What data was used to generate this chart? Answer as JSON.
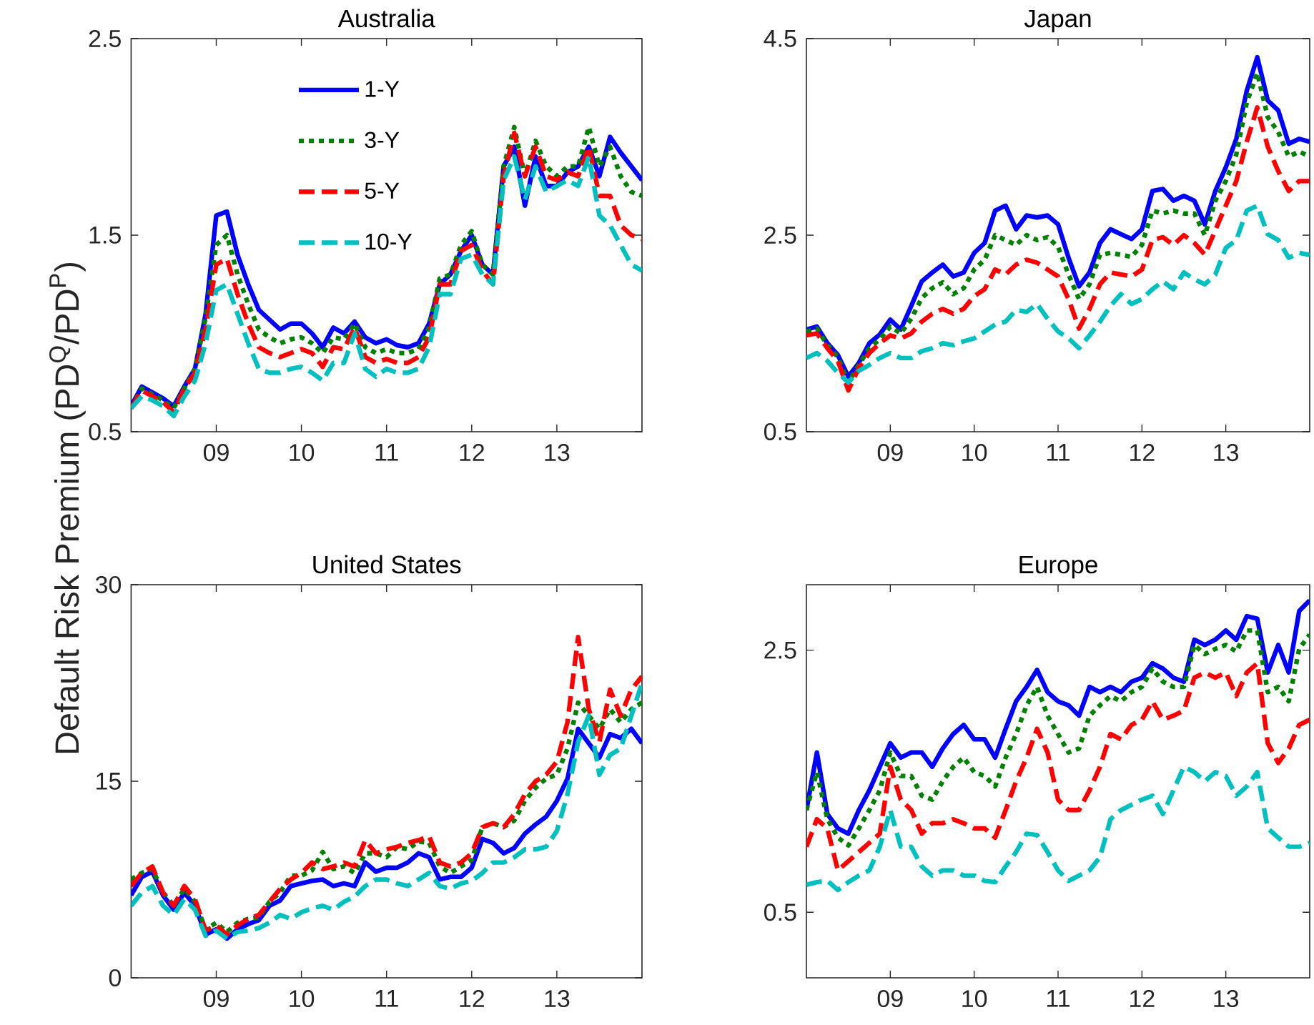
{
  "chart_data": [
    {
      "type": "line",
      "title": "Australia",
      "ylabel": "Default Risk Premium (PD$^{Q}$/PD$^{P}$)",
      "legend": "top",
      "x": [
        2008,
        2008.125,
        2008.25,
        2008.375,
        2008.5,
        2008.625,
        2008.75,
        2008.875,
        2009,
        2009.125,
        2009.25,
        2009.375,
        2009.5,
        2009.625,
        2009.75,
        2009.875,
        2010,
        2010.125,
        2010.25,
        2010.375,
        2010.5,
        2010.625,
        2010.75,
        2010.875,
        2011,
        2011.125,
        2011.25,
        2011.375,
        2011.5,
        2011.625,
        2011.75,
        2011.875,
        2012,
        2012.125,
        2012.25,
        2012.375,
        2012.5,
        2012.625,
        2012.75,
        2012.875,
        2013,
        2013.125,
        2013.25,
        2013.375,
        2013.5,
        2013.625,
        2013.75,
        2013.875,
        2014
      ],
      "xlim": [
        2008,
        2014
      ],
      "xticks": [
        {
          "value": 2009,
          "label": "09"
        },
        {
          "value": 2010,
          "label": "10"
        },
        {
          "value": 2011,
          "label": "11"
        },
        {
          "value": 2012,
          "label": "12"
        },
        {
          "value": 2013,
          "label": "13"
        }
      ],
      "ylim": [
        0.5,
        2.5
      ],
      "yticks": [
        0.5,
        1.5,
        2.5
      ],
      "series": [
        {
          "name": "1-Y",
          "color": "#0000ff",
          "line_style": "solid",
          "values": [
            0.63,
            0.73,
            0.7,
            0.67,
            0.63,
            0.73,
            0.82,
            1.1,
            1.6,
            1.62,
            1.4,
            1.25,
            1.12,
            1.07,
            1.02,
            1.05,
            1.05,
            1.0,
            0.93,
            1.03,
            1.0,
            1.06,
            0.98,
            0.95,
            0.97,
            0.94,
            0.93,
            0.95,
            1.05,
            1.25,
            1.3,
            1.42,
            1.5,
            1.35,
            1.3,
            1.85,
            1.95,
            1.65,
            1.9,
            1.75,
            1.75,
            1.82,
            1.85,
            1.95,
            1.8,
            2.0,
            1.92,
            1.85,
            1.78
          ]
        },
        {
          "name": "3-Y",
          "color": "#008000",
          "line_style": "dotted",
          "values": [
            0.62,
            0.72,
            0.69,
            0.66,
            0.62,
            0.72,
            0.82,
            1.08,
            1.45,
            1.5,
            1.3,
            1.15,
            1.02,
            0.98,
            0.95,
            0.97,
            0.98,
            0.95,
            0.9,
            0.98,
            0.97,
            1.05,
            0.93,
            0.9,
            0.92,
            0.9,
            0.9,
            0.92,
            1.03,
            1.28,
            1.3,
            1.45,
            1.52,
            1.35,
            1.3,
            1.85,
            2.05,
            1.8,
            1.98,
            1.85,
            1.8,
            1.85,
            1.85,
            2.05,
            1.85,
            1.95,
            1.8,
            1.72,
            1.7
          ]
        },
        {
          "name": "5-Y",
          "color": "#ff0000",
          "line_style": "dashed",
          "values": [
            0.62,
            0.71,
            0.68,
            0.65,
            0.6,
            0.72,
            0.8,
            1.02,
            1.35,
            1.38,
            1.2,
            1.05,
            0.93,
            0.9,
            0.88,
            0.9,
            0.92,
            0.9,
            0.83,
            0.93,
            0.92,
            1.03,
            0.88,
            0.85,
            0.87,
            0.85,
            0.85,
            0.88,
            0.98,
            1.25,
            1.25,
            1.42,
            1.45,
            1.32,
            1.25,
            1.8,
            2.02,
            1.8,
            1.95,
            1.8,
            1.78,
            1.82,
            1.8,
            1.95,
            1.7,
            1.7,
            1.55,
            1.5,
            1.48
          ]
        },
        {
          "name": "10-Y",
          "color": "#00bfbf",
          "line_style": "dashed",
          "values": [
            0.62,
            0.68,
            0.66,
            0.63,
            0.58,
            0.68,
            0.76,
            0.95,
            1.22,
            1.25,
            1.1,
            0.95,
            0.82,
            0.8,
            0.8,
            0.82,
            0.83,
            0.8,
            0.76,
            0.85,
            0.85,
            1.0,
            0.82,
            0.78,
            0.82,
            0.8,
            0.8,
            0.82,
            0.93,
            1.2,
            1.2,
            1.38,
            1.4,
            1.3,
            1.25,
            1.78,
            1.9,
            1.68,
            1.85,
            1.72,
            1.75,
            1.78,
            1.75,
            1.9,
            1.6,
            1.55,
            1.45,
            1.35,
            1.32
          ]
        }
      ]
    },
    {
      "type": "line",
      "title": "Japan",
      "x": [
        2008,
        2008.125,
        2008.25,
        2008.375,
        2008.5,
        2008.625,
        2008.75,
        2008.875,
        2009,
        2009.125,
        2009.25,
        2009.375,
        2009.5,
        2009.625,
        2009.75,
        2009.875,
        2010,
        2010.125,
        2010.25,
        2010.375,
        2010.5,
        2010.625,
        2010.75,
        2010.875,
        2011,
        2011.125,
        2011.25,
        2011.375,
        2011.5,
        2011.625,
        2011.75,
        2011.875,
        2012,
        2012.125,
        2012.25,
        2012.375,
        2012.5,
        2012.625,
        2012.75,
        2012.875,
        2013,
        2013.125,
        2013.25,
        2013.375,
        2013.5,
        2013.625,
        2013.75,
        2013.875,
        2014
      ],
      "xlim": [
        2008,
        2014
      ],
      "xticks": [
        {
          "value": 2009,
          "label": "09"
        },
        {
          "value": 2010,
          "label": "10"
        },
        {
          "value": 2011,
          "label": "11"
        },
        {
          "value": 2012,
          "label": "12"
        },
        {
          "value": 2013,
          "label": "13"
        }
      ],
      "ylim": [
        0.5,
        4.5
      ],
      "yticks": [
        0.5,
        2.5,
        4.5
      ],
      "series": [
        {
          "color": "#0000ff",
          "line_style": "solid",
          "values": [
            1.54,
            1.57,
            1.4,
            1.28,
            1.06,
            1.2,
            1.4,
            1.49,
            1.64,
            1.54,
            1.78,
            2.03,
            2.12,
            2.2,
            2.08,
            2.12,
            2.32,
            2.42,
            2.75,
            2.8,
            2.56,
            2.7,
            2.68,
            2.7,
            2.61,
            2.27,
            1.98,
            2.12,
            2.42,
            2.56,
            2.51,
            2.46,
            2.56,
            2.95,
            2.97,
            2.85,
            2.9,
            2.85,
            2.61,
            2.95,
            3.19,
            3.48,
            3.97,
            4.31,
            3.87,
            3.77,
            3.43,
            3.48,
            3.45
          ]
        },
        {
          "color": "#008000",
          "line_style": "dotted",
          "values": [
            1.52,
            1.55,
            1.38,
            1.26,
            1.0,
            1.18,
            1.35,
            1.44,
            1.57,
            1.5,
            1.65,
            1.86,
            1.96,
            2.02,
            1.9,
            1.96,
            2.15,
            2.25,
            2.5,
            2.45,
            2.4,
            2.5,
            2.45,
            2.48,
            2.38,
            2.1,
            1.85,
            2.0,
            2.3,
            2.32,
            2.3,
            2.28,
            2.4,
            2.75,
            2.72,
            2.75,
            2.72,
            2.72,
            2.5,
            2.85,
            3.05,
            3.32,
            3.85,
            4.15,
            3.7,
            3.55,
            3.3,
            3.35,
            3.3
          ]
        },
        {
          "color": "#ff0000",
          "line_style": "dashed",
          "values": [
            1.48,
            1.5,
            1.35,
            1.22,
            0.92,
            1.15,
            1.3,
            1.4,
            1.48,
            1.45,
            1.5,
            1.62,
            1.7,
            1.75,
            1.7,
            1.75,
            1.88,
            1.95,
            2.15,
            2.1,
            2.2,
            2.25,
            2.22,
            2.15,
            2.08,
            1.85,
            1.55,
            1.75,
            2.0,
            2.12,
            2.1,
            2.08,
            2.15,
            2.45,
            2.48,
            2.4,
            2.5,
            2.42,
            2.3,
            2.55,
            2.8,
            3.05,
            3.45,
            3.8,
            3.4,
            3.15,
            2.95,
            3.05,
            3.05
          ]
        },
        {
          "color": "#00bfbf",
          "line_style": "dashed",
          "values": [
            1.25,
            1.3,
            1.22,
            1.1,
            1.0,
            1.12,
            1.18,
            1.25,
            1.3,
            1.25,
            1.25,
            1.32,
            1.35,
            1.4,
            1.38,
            1.42,
            1.45,
            1.52,
            1.59,
            1.62,
            1.74,
            1.72,
            1.8,
            1.65,
            1.52,
            1.45,
            1.35,
            1.48,
            1.62,
            1.78,
            1.9,
            1.8,
            1.85,
            1.95,
            2.03,
            1.95,
            2.12,
            2.05,
            2.0,
            2.1,
            2.37,
            2.45,
            2.75,
            2.8,
            2.51,
            2.45,
            2.27,
            2.32,
            2.3
          ]
        }
      ]
    },
    {
      "type": "line",
      "title": "United States",
      "x": [
        2008,
        2008.125,
        2008.25,
        2008.375,
        2008.5,
        2008.625,
        2008.75,
        2008.875,
        2009,
        2009.125,
        2009.25,
        2009.375,
        2009.5,
        2009.625,
        2009.75,
        2009.875,
        2010,
        2010.125,
        2010.25,
        2010.375,
        2010.5,
        2010.625,
        2010.75,
        2010.875,
        2011,
        2011.125,
        2011.25,
        2011.375,
        2011.5,
        2011.625,
        2011.75,
        2011.875,
        2012,
        2012.125,
        2012.25,
        2012.375,
        2012.5,
        2012.625,
        2012.75,
        2012.875,
        2013,
        2013.125,
        2013.25,
        2013.375,
        2013.5,
        2013.625,
        2013.75,
        2013.875,
        2014
      ],
      "xlim": [
        2008,
        2014
      ],
      "xticks": [
        {
          "value": 2009,
          "label": "09"
        },
        {
          "value": 2010,
          "label": "10"
        },
        {
          "value": 2011,
          "label": "11"
        },
        {
          "value": 2012,
          "label": "12"
        },
        {
          "value": 2013,
          "label": "13"
        }
      ],
      "ylim": [
        0,
        30
      ],
      "yticks": [
        0,
        15,
        30
      ],
      "series": [
        {
          "color": "#0000ff",
          "line_style": "solid",
          "values": [
            6.3,
            7.7,
            8.1,
            6.3,
            5.2,
            6.5,
            5.5,
            3.3,
            3.7,
            3.0,
            3.7,
            4.1,
            4.4,
            5.5,
            5.9,
            7.0,
            7.2,
            7.4,
            7.5,
            7.0,
            7.2,
            7.0,
            8.8,
            8.1,
            8.4,
            8.4,
            8.8,
            9.5,
            9.2,
            7.5,
            7.7,
            7.7,
            8.4,
            10.6,
            10.3,
            9.5,
            9.9,
            11.0,
            11.7,
            12.3,
            13.5,
            15.2,
            19.0,
            17.9,
            16.8,
            18.6,
            18.3,
            19.0,
            17.9
          ]
        },
        {
          "color": "#008000",
          "line_style": "dotted",
          "values": [
            7.5,
            8.0,
            8.3,
            6.5,
            5.5,
            6.8,
            5.8,
            3.7,
            4.2,
            3.5,
            4.2,
            4.5,
            4.6,
            5.8,
            6.5,
            7.8,
            7.8,
            8.2,
            9.6,
            8.3,
            8.5,
            8.0,
            9.5,
            9.5,
            9.2,
            10.0,
            9.8,
            10.4,
            10.3,
            8.5,
            8.0,
            8.5,
            9.0,
            11.5,
            11.8,
            11.5,
            12.0,
            13.5,
            14.5,
            15.2,
            15.5,
            17.5,
            21.0,
            20.0,
            19.0,
            20.5,
            19.5,
            20.5,
            21.0
          ]
        },
        {
          "color": "#ff0000",
          "line_style": "dashed",
          "values": [
            7.0,
            8.0,
            8.5,
            6.5,
            5.5,
            7.0,
            6.0,
            3.6,
            4.0,
            3.3,
            4.0,
            4.5,
            4.8,
            5.8,
            6.8,
            7.5,
            8.0,
            8.8,
            8.3,
            8.5,
            8.8,
            8.5,
            10.5,
            9.5,
            9.8,
            10.0,
            10.3,
            10.5,
            10.8,
            8.8,
            8.5,
            8.8,
            9.5,
            11.5,
            11.8,
            11.5,
            12.5,
            14.0,
            15.0,
            15.5,
            16.5,
            19.5,
            26.0,
            20.5,
            18.0,
            22.0,
            20.0,
            22.0,
            23.0
          ]
        },
        {
          "color": "#00bfbf",
          "line_style": "dashed",
          "values": [
            5.5,
            6.5,
            7.0,
            5.5,
            4.8,
            6.0,
            5.2,
            3.2,
            3.6,
            3.0,
            3.5,
            3.6,
            3.8,
            4.2,
            4.8,
            4.5,
            5.0,
            5.3,
            5.5,
            5.2,
            5.8,
            6.2,
            7.0,
            7.5,
            7.5,
            7.2,
            7.0,
            7.5,
            8.0,
            7.0,
            6.8,
            7.2,
            7.4,
            8.0,
            8.8,
            8.8,
            9.2,
            9.8,
            9.8,
            10.0,
            11.2,
            14.0,
            18.0,
            20.0,
            15.5,
            17.0,
            17.5,
            20.0,
            22.5
          ]
        }
      ]
    },
    {
      "type": "line",
      "title": "Europe",
      "x": [
        2008,
        2008.125,
        2008.25,
        2008.375,
        2008.5,
        2008.625,
        2008.75,
        2008.875,
        2009,
        2009.125,
        2009.25,
        2009.375,
        2009.5,
        2009.625,
        2009.75,
        2009.875,
        2010,
        2010.125,
        2010.25,
        2010.375,
        2010.5,
        2010.625,
        2010.75,
        2010.875,
        2011,
        2011.125,
        2011.25,
        2011.375,
        2011.5,
        2011.625,
        2011.75,
        2011.875,
        2012,
        2012.125,
        2012.25,
        2012.375,
        2012.5,
        2012.625,
        2012.75,
        2012.875,
        2013,
        2013.125,
        2013.25,
        2013.375,
        2013.5,
        2013.625,
        2013.75,
        2013.875,
        2014
      ],
      "xlim": [
        2008,
        2014
      ],
      "xticks": [
        {
          "value": 2009,
          "label": "09"
        },
        {
          "value": 2010,
          "label": "10"
        },
        {
          "value": 2011,
          "label": "11"
        },
        {
          "value": 2012,
          "label": "12"
        },
        {
          "value": 2013,
          "label": "13"
        }
      ],
      "ylim": [
        0,
        3
      ],
      "yticks": [
        0.5,
        2.5
      ],
      "series": [
        {
          "color": "#0000ff",
          "line_style": "solid",
          "values": [
            1.28,
            1.72,
            1.25,
            1.14,
            1.1,
            1.28,
            1.43,
            1.61,
            1.79,
            1.68,
            1.72,
            1.72,
            1.61,
            1.75,
            1.86,
            1.93,
            1.82,
            1.82,
            1.68,
            1.9,
            2.11,
            2.22,
            2.35,
            2.18,
            2.11,
            2.08,
            2.0,
            2.22,
            2.18,
            2.22,
            2.18,
            2.26,
            2.29,
            2.4,
            2.36,
            2.29,
            2.26,
            2.58,
            2.54,
            2.58,
            2.65,
            2.58,
            2.76,
            2.74,
            2.33,
            2.54,
            2.33,
            2.8,
            2.88
          ]
        },
        {
          "color": "#008000",
          "line_style": "dotted",
          "values": [
            1.28,
            1.57,
            1.21,
            1.07,
            1.01,
            1.14,
            1.28,
            1.43,
            1.72,
            1.54,
            1.54,
            1.39,
            1.36,
            1.5,
            1.61,
            1.68,
            1.57,
            1.54,
            1.46,
            1.68,
            1.86,
            2.08,
            2.22,
            2.0,
            1.86,
            1.72,
            1.75,
            2.0,
            2.08,
            2.15,
            2.11,
            2.18,
            2.22,
            2.36,
            2.26,
            2.22,
            2.22,
            2.54,
            2.47,
            2.51,
            2.54,
            2.49,
            2.65,
            2.65,
            2.18,
            2.22,
            2.11,
            2.51,
            2.62
          ]
        },
        {
          "color": "#ff0000",
          "line_style": "dashed",
          "values": [
            1.0,
            1.21,
            1.14,
            0.82,
            0.89,
            0.96,
            1.03,
            1.1,
            1.61,
            1.36,
            1.28,
            1.1,
            1.18,
            1.18,
            1.21,
            1.18,
            1.14,
            1.14,
            1.07,
            1.28,
            1.5,
            1.68,
            1.9,
            1.72,
            1.36,
            1.28,
            1.28,
            1.43,
            1.61,
            1.86,
            1.82,
            1.93,
            1.97,
            2.11,
            1.97,
            2.0,
            2.04,
            2.29,
            2.33,
            2.29,
            2.33,
            2.15,
            2.33,
            2.4,
            1.79,
            1.64,
            1.75,
            1.93,
            1.97
          ]
        },
        {
          "color": "#00bfbf",
          "line_style": "dashed",
          "values": [
            0.71,
            0.73,
            0.74,
            0.67,
            0.73,
            0.78,
            0.82,
            1.0,
            1.28,
            1.0,
            1.0,
            0.85,
            0.78,
            0.82,
            0.82,
            0.78,
            0.78,
            0.74,
            0.73,
            0.85,
            0.96,
            1.1,
            1.09,
            0.96,
            0.82,
            0.74,
            0.78,
            0.82,
            0.92,
            1.21,
            1.28,
            1.32,
            1.36,
            1.39,
            1.25,
            1.43,
            1.61,
            1.57,
            1.5,
            1.57,
            1.54,
            1.39,
            1.46,
            1.57,
            1.14,
            1.07,
            1.0,
            1.0,
            1.03
          ]
        }
      ]
    }
  ]
}
